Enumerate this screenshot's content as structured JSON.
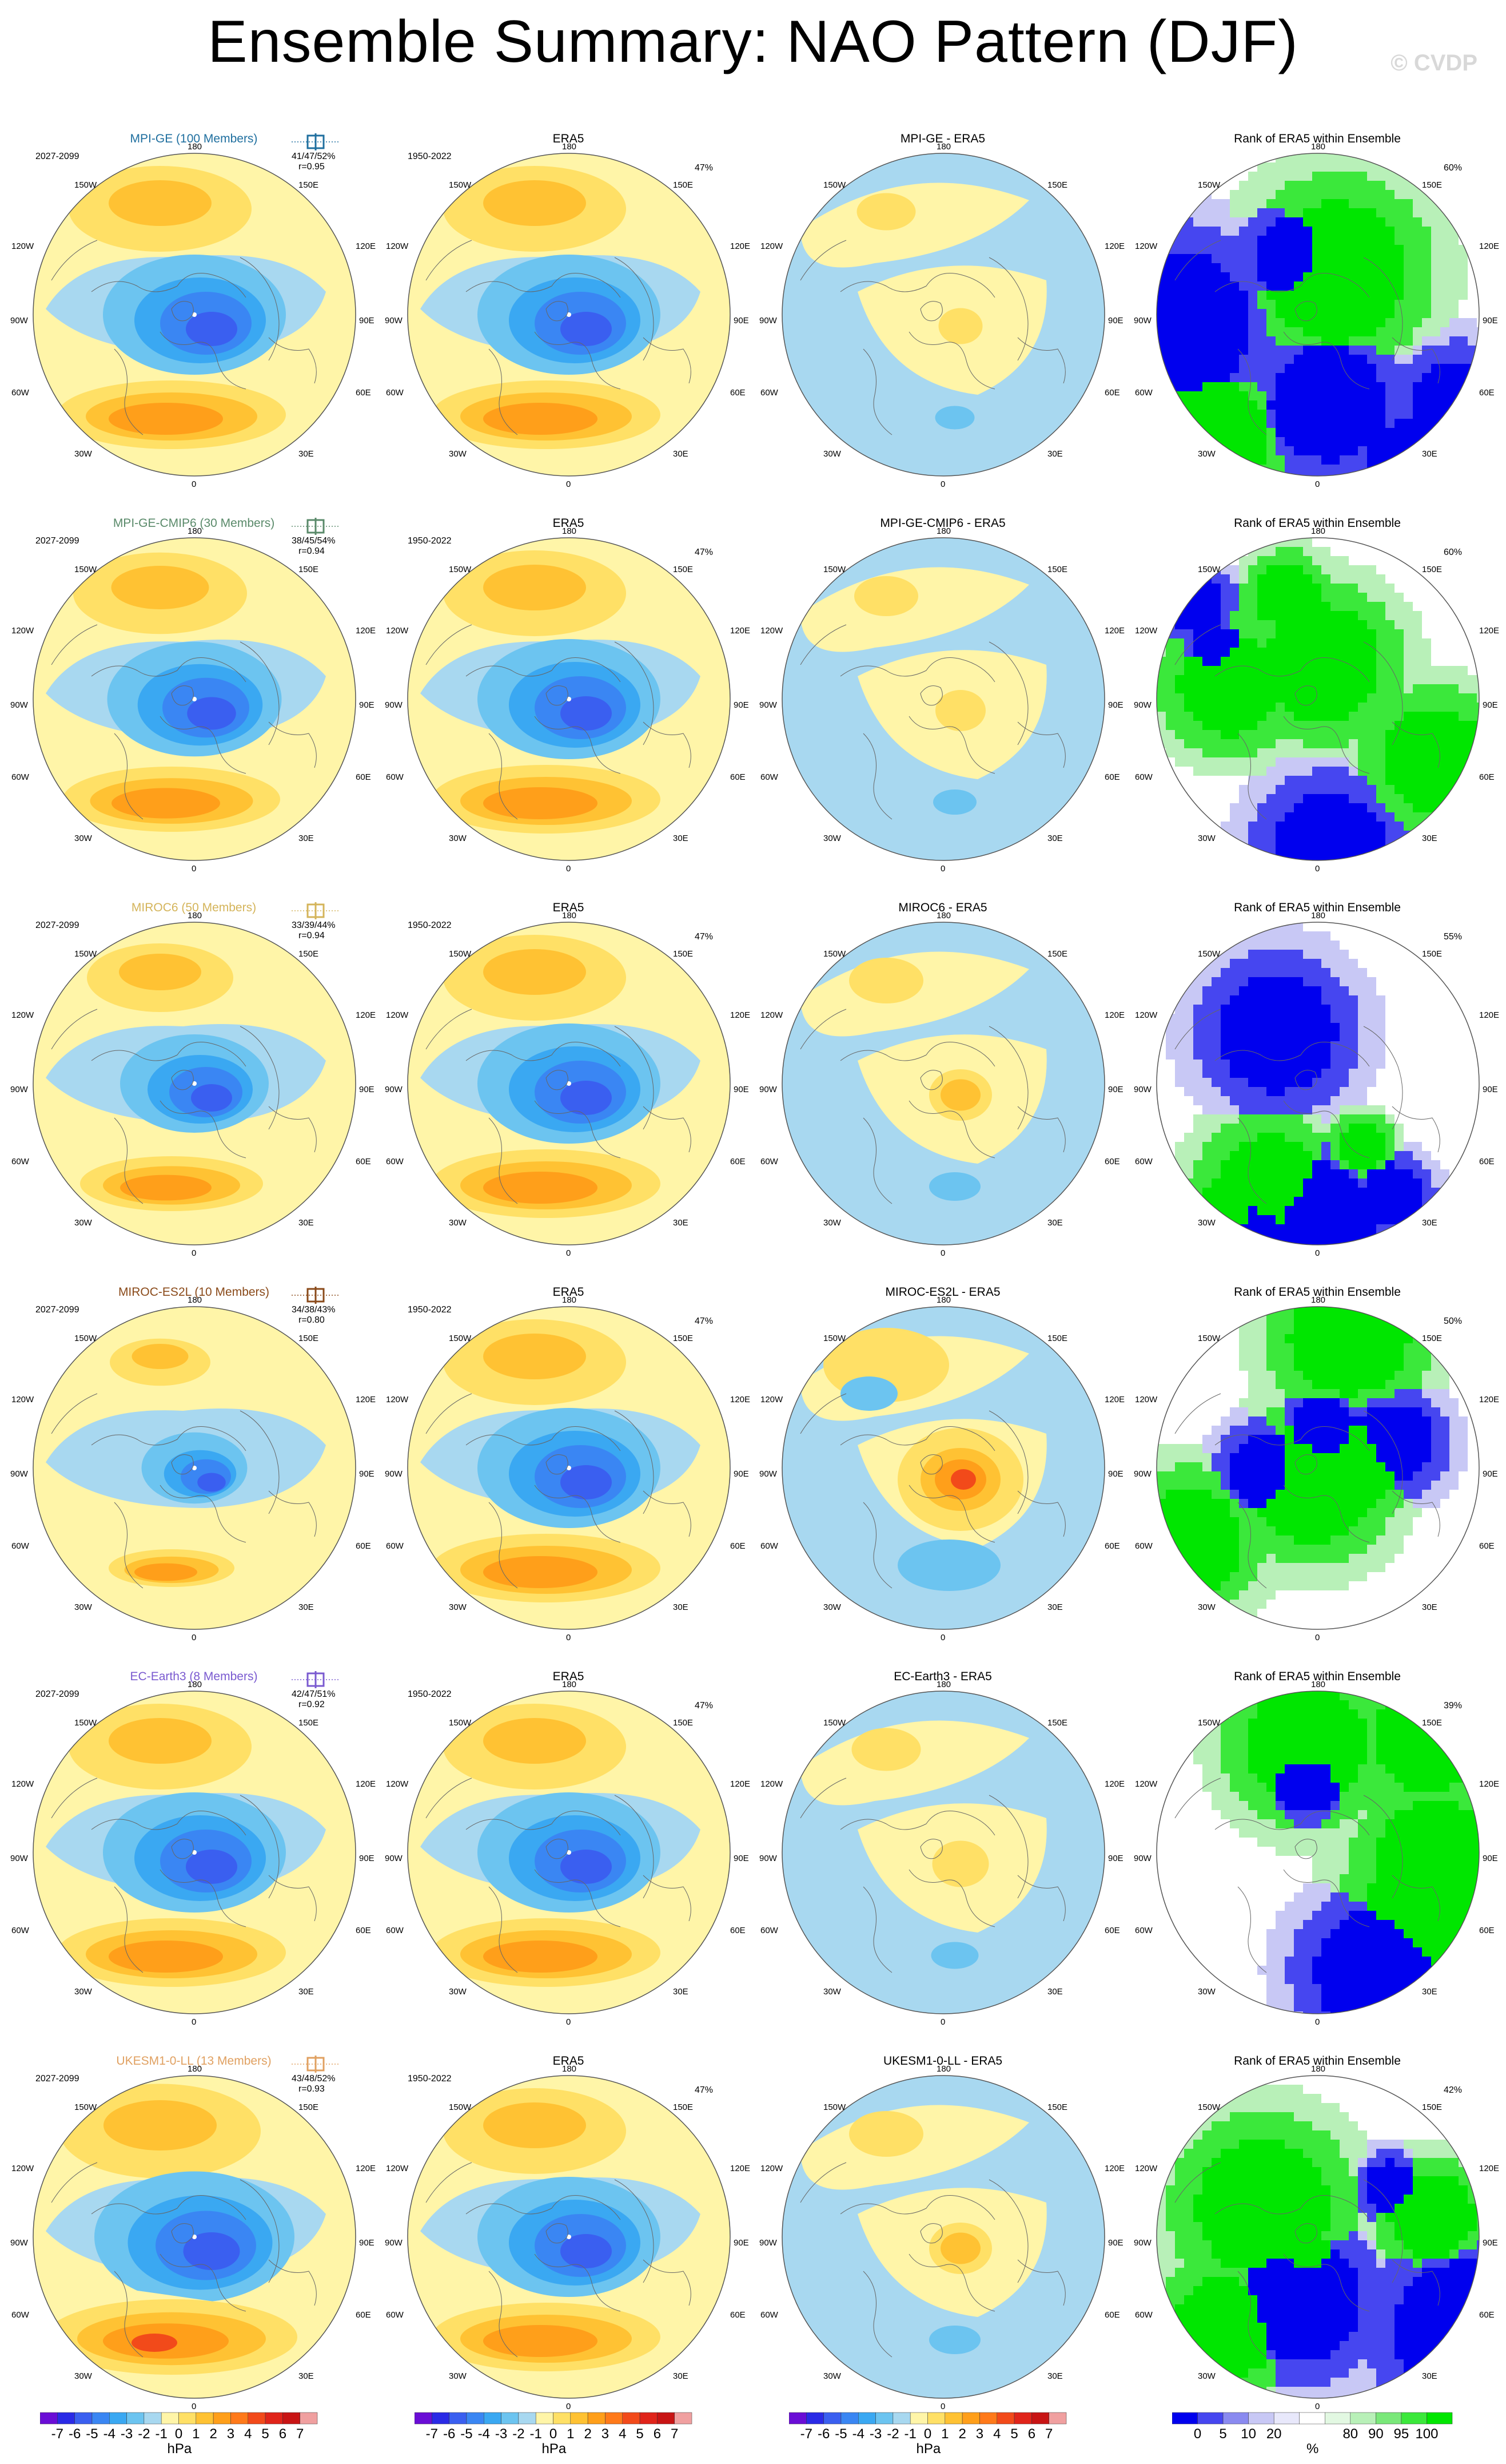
{
  "title": "Ensemble Summary: NAO Pattern (DJF)",
  "watermark": "© CVDP",
  "colors": {
    "anom_levels": [
      "#6a0dd6",
      "#2a2ae6",
      "#3a5ff0",
      "#3a86f3",
      "#3aa8f2",
      "#6cc4f0",
      "#a8d8f0",
      "#fff5a8",
      "#ffe066",
      "#ffc233",
      "#ff9f1a",
      "#ff7a1a",
      "#f24a1a",
      "#e0241a",
      "#c81414",
      "#f0a0a0"
    ],
    "rank_levels": [
      "#0000ee",
      "#4646f0",
      "#8a8af0",
      "#c8c8f5",
      "#e8e8fb",
      "#ffffff",
      "#e2f8e2",
      "#b8f0b8",
      "#7ae87a",
      "#3be83b",
      "#00e600"
    ],
    "ocean_pos": "#fff5a8",
    "ocean_neg": "#a8d8f0"
  },
  "lon_labels": {
    "top": "180",
    "tl": "150W",
    "tr": "150E",
    "ul": "120W",
    "ur": "120E",
    "l": "90W",
    "r": "90E",
    "ll": "60W",
    "lr": "60E",
    "bl": "30W",
    "br": "30E",
    "bottom": "0"
  },
  "rows": [
    {
      "model": "MPI-GE (100 Members)",
      "model_color": "#1f6f9f",
      "period": "2027-2099",
      "stats": "41/47/52%",
      "r": "r=0.95",
      "era_period": "1950-2022",
      "era_pct": "47%",
      "diff_title": "MPI-GE - ERA5",
      "rank_title": "Rank of ERA5 within Ensemble",
      "rank_pct": "60%",
      "strength": 1.0,
      "diff_sign": -1,
      "diff_strength": 0.35,
      "rank_seed": 1
    },
    {
      "model": "MPI-GE-CMIP6 (30 Members)",
      "model_color": "#5a8a6a",
      "period": "2027-2099",
      "stats": "38/45/54%",
      "r": "r=0.94",
      "era_period": "1950-2022",
      "era_pct": "47%",
      "diff_title": "MPI-GE-CMIP6 - ERA5",
      "rank_title": "Rank of ERA5 within Ensemble",
      "rank_pct": "60%",
      "strength": 0.95,
      "diff_sign": 1,
      "diff_strength": 0.4,
      "rank_seed": 2
    },
    {
      "model": "MIROC6 (50 Members)",
      "model_color": "#d4b45a",
      "period": "2027-2099",
      "stats": "33/39/44%",
      "r": "r=0.94",
      "era_period": "1950-2022",
      "era_pct": "47%",
      "diff_title": "MIROC6 - ERA5",
      "rank_title": "Rank of ERA5 within Ensemble",
      "rank_pct": "55%",
      "strength": 0.8,
      "diff_sign": 1,
      "diff_strength": 0.5,
      "rank_seed": 3
    },
    {
      "model": "MIROC-ES2L (10 Members)",
      "model_color": "#8a4a1a",
      "period": "2027-2099",
      "stats": "34/38/43%",
      "r": "r=0.80",
      "era_period": "1950-2022",
      "era_pct": "47%",
      "diff_title": "MIROC-ES2L - ERA5",
      "rank_title": "Rank of ERA5 within Ensemble",
      "rank_pct": "50%",
      "strength": 0.55,
      "diff_sign": 1,
      "diff_strength": 1.0,
      "rank_seed": 4
    },
    {
      "model": "EC-Earth3 (8 Members)",
      "model_color": "#7a5ad0",
      "period": "2027-2099",
      "stats": "42/47/51%",
      "r": "r=0.92",
      "era_period": "1950-2022",
      "era_pct": "47%",
      "diff_title": "EC-Earth3 - ERA5",
      "rank_title": "Rank of ERA5 within Ensemble",
      "rank_pct": "39%",
      "strength": 1.0,
      "diff_sign": 1,
      "diff_strength": 0.45,
      "rank_seed": 5
    },
    {
      "model": "UKESM1-0-LL (13 Members)",
      "model_color": "#e0a060",
      "period": "2027-2099",
      "stats": "43/48/52%",
      "r": "r=0.93",
      "era_period": "1950-2022",
      "era_pct": "47%",
      "diff_title": "UKESM1-0-LL - ERA5",
      "rank_title": "Rank of ERA5 within Ensemble",
      "rank_pct": "42%",
      "strength": 1.1,
      "diff_sign": 1,
      "diff_strength": 0.5,
      "rank_seed": 6
    }
  ],
  "era_title": "ERA5",
  "colorbars": {
    "anom_labels": [
      "-7",
      "-6",
      "-5",
      "-4",
      "-3",
      "-2",
      "-1",
      "0",
      "1",
      "2",
      "3",
      "4",
      "5",
      "6",
      "7"
    ],
    "anom_unit": "hPa",
    "rank_labels": [
      "0",
      "5",
      "10",
      "20",
      "80",
      "90",
      "95",
      "100"
    ],
    "rank_unit": "%"
  }
}
